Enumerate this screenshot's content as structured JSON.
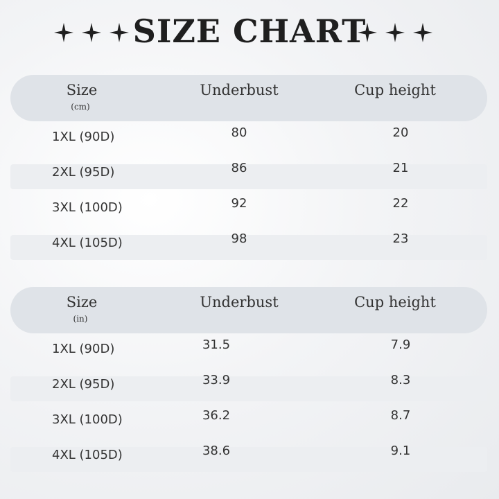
{
  "title": "SIZE CHART",
  "tables": [
    {
      "header": [
        "Size",
        "Underbust",
        "Cup height"
      ],
      "unit": "(cm)",
      "rows": [
        [
          "1XL (90D)",
          80,
          20
        ],
        [
          "2XL (95D)",
          86,
          21
        ],
        [
          "3XL (100D)",
          92,
          22
        ],
        [
          "4XL (105D)",
          98,
          23
        ]
      ]
    },
    {
      "header": [
        "Size",
        "Underbust",
        "Cup height"
      ],
      "unit": "(in)",
      "rows": [
        [
          "1XL (90D)",
          31.5,
          7.9
        ],
        [
          "2XL (95D)",
          33.9,
          8.3
        ],
        [
          "3XL (100D)",
          36.2,
          8.7
        ],
        [
          "4XL (105D)",
          38.6,
          9.1
        ]
      ]
    }
  ]
}
